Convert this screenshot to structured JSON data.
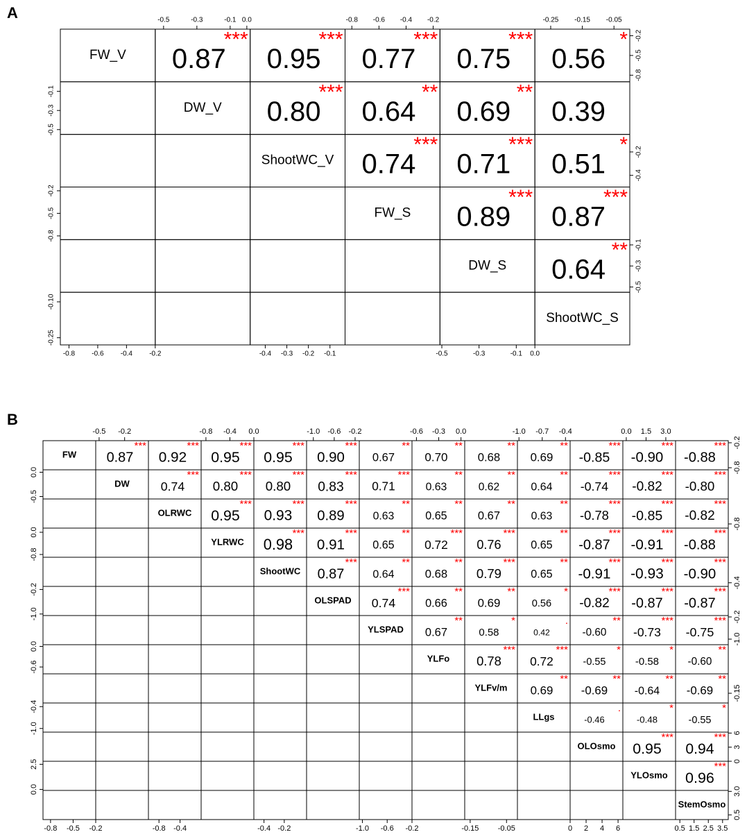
{
  "chart_data": [
    {
      "type": "correlation-matrix",
      "panel_label": "A",
      "scale_text": false,
      "variables": [
        "FW_V",
        "DW_V",
        "ShootWC_V",
        "FW_S",
        "DW_S",
        "ShootWC_S"
      ],
      "correlations": [
        0.87,
        0.95,
        0.77,
        0.75,
        0.56,
        0.8,
        0.64,
        0.69,
        0.39,
        0.74,
        0.71,
        0.51,
        0.89,
        0.87,
        0.64
      ],
      "value_labels": [
        "0.87",
        "0.95",
        "0.77",
        "0.75",
        "0.56",
        "0.80",
        "0.64",
        "0.69",
        "0.39",
        "0.74",
        "0.71",
        "0.51",
        "0.89",
        "0.87",
        "0.64"
      ],
      "stars": [
        "***",
        "***",
        "***",
        "***",
        "*",
        "***",
        "**",
        "**",
        null,
        "***",
        "***",
        "*",
        "***",
        "***",
        "**"
      ],
      "axes": [
        {
          "side": "top",
          "index": 1,
          "lim": [
            -0.55,
            0.02
          ],
          "ticks": [
            -0.5,
            -0.3,
            -0.1,
            {
              "value": 0,
              "label": "0.0"
            }
          ]
        },
        {
          "side": "top",
          "index": 3,
          "lim": [
            -0.85,
            -0.15
          ],
          "ticks": [
            -0.8,
            -0.6,
            -0.4,
            -0.2
          ]
        },
        {
          "side": "top",
          "index": 5,
          "lim": [
            -0.3,
            0
          ],
          "ticks": [
            -0.25,
            -0.15,
            -0.05
          ]
        },
        {
          "side": "right",
          "index": 0,
          "lim": [
            -0.9,
            -0.1
          ],
          "ticks": [
            -0.2,
            -0.5,
            -0.8
          ]
        },
        {
          "side": "right",
          "index": 2,
          "lim": [
            -0.5,
            -0.05
          ],
          "ticks": [
            -0.2,
            -0.4
          ]
        },
        {
          "side": "right",
          "index": 4,
          "lim": [
            -0.55,
            -0.05
          ],
          "ticks": [
            -0.1,
            -0.3,
            -0.5
          ]
        },
        {
          "side": "left",
          "index": 1,
          "lim": [
            -0.55,
            0
          ],
          "ticks": [
            -0.1,
            -0.3,
            -0.5
          ]
        },
        {
          "side": "left",
          "index": 3,
          "lim": [
            -0.85,
            -0.15
          ],
          "ticks": [
            -0.2,
            -0.5,
            -0.8
          ]
        },
        {
          "side": "left",
          "index": 5,
          "lim": [
            -0.28,
            -0.06
          ],
          "ticks": [
            {
              "value": -0.1,
              "label": "-0.10"
            },
            -0.25
          ]
        },
        {
          "side": "bottom",
          "index": 0,
          "lim": [
            -0.86,
            -0.2
          ],
          "ticks": [
            -0.8,
            -0.6,
            -0.4,
            -0.2
          ]
        },
        {
          "side": "bottom",
          "index": 2,
          "lim": [
            -0.47,
            -0.03
          ],
          "ticks": [
            -0.4,
            -0.3,
            -0.2,
            -0.1
          ]
        },
        {
          "side": "bottom",
          "index": 4,
          "lim": [
            -0.51,
            0
          ],
          "ticks": [
            -0.5,
            -0.3,
            -0.1,
            {
              "value": 0,
              "label": "0.0"
            }
          ]
        }
      ]
    },
    {
      "type": "correlation-matrix",
      "panel_label": "B",
      "scale_text": true,
      "variables": [
        "FW",
        "DW",
        "OLRWC",
        "YLRWC",
        "ShootWC",
        "OLSPAD",
        "YLSPAD",
        "YLFo",
        "YLFv/m",
        "LLgs",
        "OLOsmo",
        "YLOsmo",
        "StemOsmo"
      ],
      "correlations": [
        0.87,
        0.92,
        0.95,
        0.95,
        0.9,
        0.67,
        0.7,
        0.68,
        0.69,
        -0.85,
        -0.9,
        -0.88,
        0.74,
        0.8,
        0.8,
        0.83,
        0.71,
        0.63,
        0.62,
        0.64,
        -0.74,
        -0.82,
        -0.8,
        0.95,
        0.93,
        0.89,
        0.63,
        0.65,
        0.67,
        0.63,
        -0.78,
        -0.85,
        -0.82,
        0.98,
        0.91,
        0.65,
        0.72,
        0.76,
        0.65,
        -0.87,
        -0.91,
        -0.88,
        0.87,
        0.64,
        0.68,
        0.79,
        0.65,
        -0.91,
        -0.93,
        -0.9,
        0.74,
        0.66,
        0.69,
        0.56,
        -0.82,
        -0.87,
        -0.87,
        0.67,
        0.58,
        0.42,
        -0.6,
        -0.73,
        -0.75,
        0.78,
        0.72,
        -0.55,
        -0.58,
        -0.6,
        0.69,
        -0.69,
        -0.64,
        -0.69,
        -0.46,
        -0.48,
        -0.55,
        0.95,
        0.94,
        0.96
      ],
      "value_labels": [
        "0.87",
        "0.92",
        "0.95",
        "0.95",
        "0.90",
        "0.67",
        "0.70",
        "0.68",
        "0.69",
        "-0.85",
        "-0.90",
        "-0.88",
        "0.74",
        "0.80",
        "0.80",
        "0.83",
        "0.71",
        "0.63",
        "0.62",
        "0.64",
        "-0.74",
        "-0.82",
        "-0.80",
        "0.95",
        "0.93",
        "0.89",
        "0.63",
        "0.65",
        "0.67",
        "0.63",
        "-0.78",
        "-0.85",
        "-0.82",
        "0.98",
        "0.91",
        "0.65",
        "0.72",
        "0.76",
        "0.65",
        "-0.87",
        "-0.91",
        "-0.88",
        "0.87",
        "0.64",
        "0.68",
        "0.79",
        "0.65",
        "-0.91",
        "-0.93",
        "-0.90",
        "0.74",
        "0.66",
        "0.69",
        "0.56",
        "-0.82",
        "-0.87",
        "-0.87",
        "0.67",
        "0.58",
        "0.42",
        "-0.60",
        "-0.73",
        "-0.75",
        "0.78",
        "0.72",
        "-0.55",
        "-0.58",
        "-0.60",
        "0.69",
        "-0.69",
        "-0.64",
        "-0.69",
        "-0.46",
        "-0.48",
        "-0.55",
        "0.95",
        "0.94",
        "0.96"
      ],
      "stars": [
        "***",
        "***",
        "***",
        "***",
        "***",
        "**",
        "**",
        "**",
        "**",
        "***",
        "***",
        "***",
        "***",
        "***",
        "***",
        "***",
        "***",
        "**",
        "**",
        "**",
        "***",
        "***",
        "***",
        "***",
        "***",
        "***",
        "**",
        "**",
        "**",
        "**",
        "***",
        "***",
        "***",
        "***",
        "***",
        "**",
        "***",
        "***",
        "**",
        "***",
        "***",
        "***",
        "***",
        "**",
        "**",
        "***",
        "**",
        "***",
        "***",
        "***",
        "***",
        "**",
        "**",
        "*",
        "***",
        "***",
        "***",
        "**",
        "*",
        ".",
        "**",
        "***",
        "***",
        "***",
        "***",
        "*",
        "*",
        "**",
        "**",
        "**",
        "**",
        "**",
        ".",
        "*",
        "*",
        "***",
        "***",
        "***"
      ],
      "axes": [
        {
          "side": "top",
          "index": 1,
          "lim": [
            -0.54,
            0.08
          ],
          "ticks": [
            -0.5,
            -0.2
          ]
        },
        {
          "side": "top",
          "index": 3,
          "lim": [
            -0.88,
            0.0
          ],
          "ticks": [
            -0.8,
            -0.4,
            {
              "value": 0,
              "label": "0.0"
            }
          ]
        },
        {
          "side": "top",
          "index": 5,
          "lim": [
            -1.13,
            -0.12
          ],
          "ticks": [
            {
              "value": -1,
              "label": "-1.0"
            },
            -0.6,
            -0.2
          ]
        },
        {
          "side": "top",
          "index": 7,
          "lim": [
            -0.66,
            0.05
          ],
          "ticks": [
            -0.6,
            -0.3,
            {
              "value": 0,
              "label": "0.0"
            }
          ]
        },
        {
          "side": "top",
          "index": 9,
          "lim": [
            -1.02,
            -0.34
          ],
          "ticks": [
            {
              "value": -1,
              "label": "-1.0"
            },
            -0.7,
            -0.4
          ]
        },
        {
          "side": "top",
          "index": 11,
          "lim": [
            -0.26,
            3.74
          ],
          "ticks": [
            {
              "value": 0,
              "label": "0.0"
            },
            1.5,
            {
              "value": 3,
              "label": "3.0"
            }
          ]
        },
        {
          "side": "right",
          "index": 0,
          "lim": [
            -0.85,
            -0.15
          ],
          "ticks": [
            -0.2,
            -0.8
          ]
        },
        {
          "side": "right",
          "index": 2,
          "lim": [
            -0.95,
            0.1
          ],
          "ticks": [
            -0.8
          ]
        },
        {
          "side": "right",
          "index": 4,
          "lim": [
            -0.45,
            -0.05
          ],
          "ticks": [
            -0.4
          ]
        },
        {
          "side": "right",
          "index": 6,
          "lim": [
            -1.2,
            -0.15
          ],
          "ticks": [
            -0.2,
            {
              "value": -1,
              "label": "-1.0"
            }
          ]
        },
        {
          "side": "right",
          "index": 8,
          "lim": [
            -0.2,
            -0.05
          ],
          "ticks": [
            -0.15
          ]
        },
        {
          "side": "right",
          "index": 10,
          "lim": [
            0,
            6.2
          ],
          "ticks": [
            6,
            3,
            0
          ]
        },
        {
          "side": "right",
          "index": 12,
          "lim": [
            0,
            3.1
          ],
          "ticks": [
            {
              "value": 3,
              "label": "3.0"
            },
            0.5
          ]
        },
        {
          "side": "left",
          "index": 1,
          "lim": [
            -0.55,
            0.05
          ],
          "ticks": [
            {
              "value": 0,
              "label": "0.0"
            },
            -0.5
          ]
        },
        {
          "side": "left",
          "index": 3,
          "lim": [
            -0.9,
            0.15
          ],
          "ticks": [
            {
              "value": 0,
              "label": "0.0"
            },
            -0.8
          ]
        },
        {
          "side": "left",
          "index": 5,
          "lim": [
            -1.05,
            -0.1
          ],
          "ticks": [
            -0.2,
            {
              "value": -1,
              "label": "-1.0"
            }
          ]
        },
        {
          "side": "left",
          "index": 7,
          "lim": [
            -0.8,
            0.05
          ],
          "ticks": [
            {
              "value": 0,
              "label": "0.0"
            },
            -0.6
          ]
        },
        {
          "side": "left",
          "index": 9,
          "lim": [
            -1.1,
            -0.3
          ],
          "ticks": [
            -0.4,
            {
              "value": -1,
              "label": "-1.0"
            }
          ]
        },
        {
          "side": "left",
          "index": 11,
          "lim": [
            -0.1,
            2.8
          ],
          "ticks": [
            2.5,
            {
              "value": 0,
              "label": "0.0"
            }
          ]
        },
        {
          "side": "bottom",
          "index": 0,
          "lim": [
            -0.9,
            -0.2
          ],
          "ticks": [
            -0.8,
            -0.5,
            -0.2
          ]
        },
        {
          "side": "bottom",
          "index": 2,
          "lim": [
            -1.0,
            0.0
          ],
          "ticks": [
            -0.8,
            -0.4
          ]
        },
        {
          "side": "bottom",
          "index": 4,
          "lim": [
            -0.5,
            0.02
          ],
          "ticks": [
            -0.4,
            -0.2
          ]
        },
        {
          "side": "bottom",
          "index": 6,
          "lim": [
            -1.05,
            -0.2
          ],
          "ticks": [
            {
              "value": -1,
              "label": "-1.0"
            },
            -0.6,
            -0.2
          ]
        },
        {
          "side": "bottom",
          "index": 8,
          "lim": [
            -0.165,
            -0.02
          ],
          "ticks": [
            -0.15,
            -0.05
          ]
        },
        {
          "side": "bottom",
          "index": 10,
          "lim": [
            0,
            6.6
          ],
          "ticks": [
            0,
            2,
            4,
            6
          ]
        },
        {
          "side": "bottom",
          "index": 12,
          "lim": [
            0.2,
            3.9
          ],
          "ticks": [
            0.5,
            1.5,
            2.5,
            3.5
          ]
        }
      ]
    }
  ]
}
